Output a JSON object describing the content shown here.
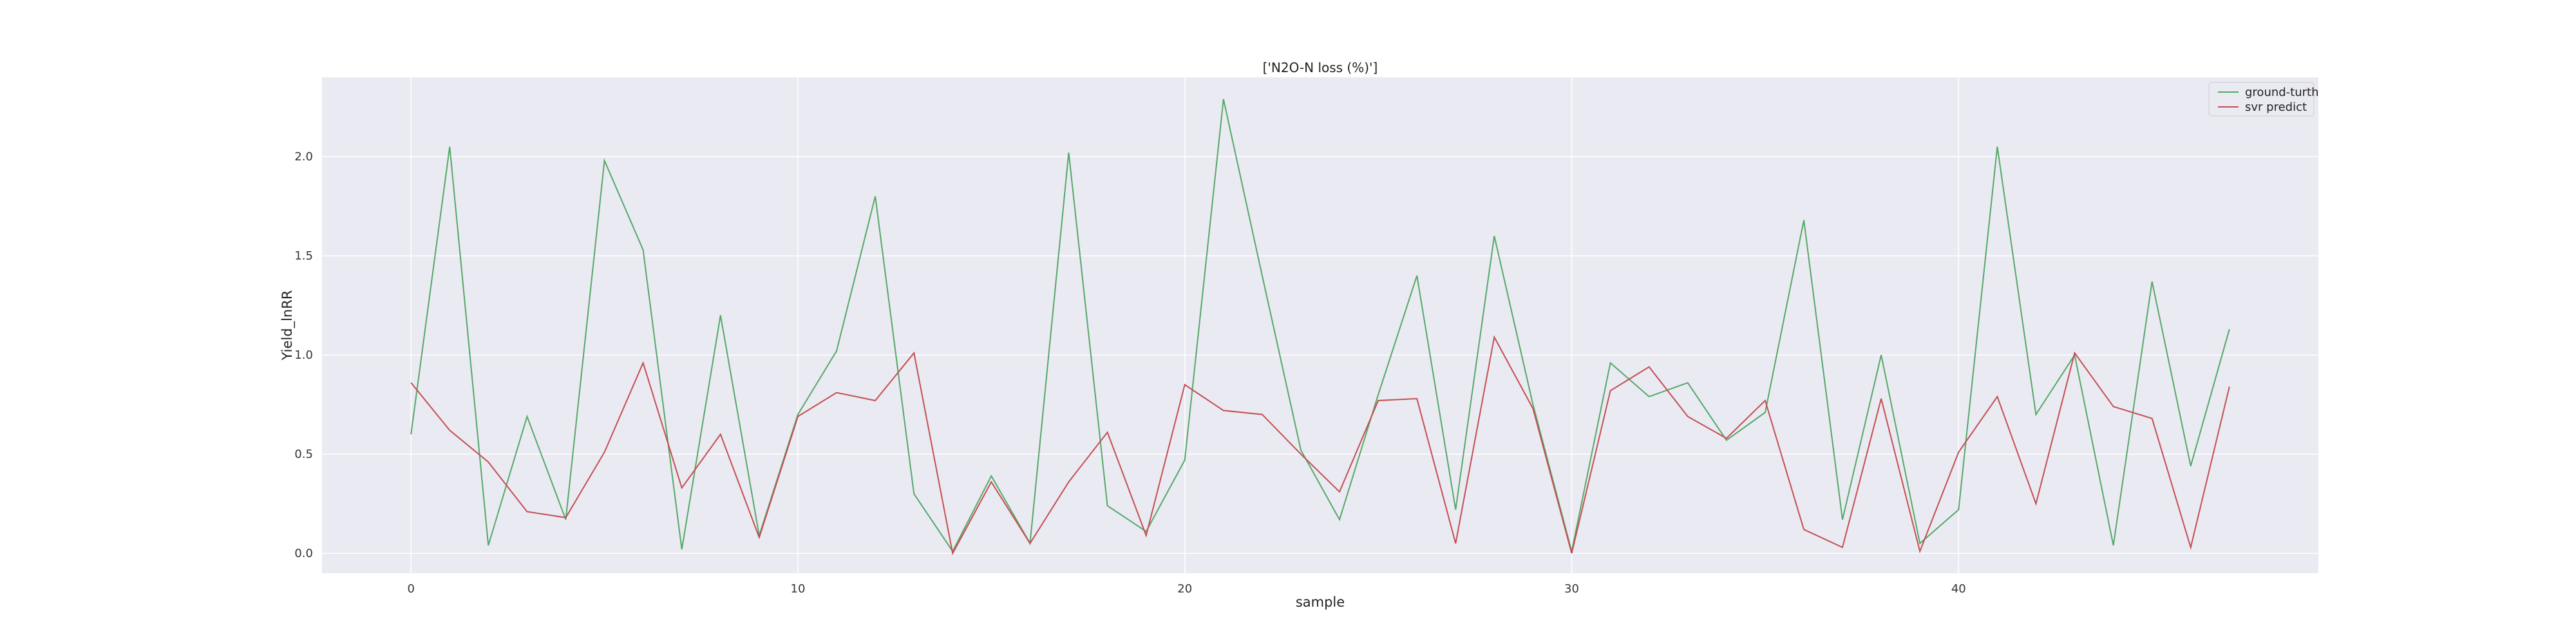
{
  "chart_data": {
    "type": "line",
    "title": "['N2O-N loss (%)']",
    "xlabel": "sample",
    "ylabel": "Yield_lnRR",
    "xlim": [
      -2.3,
      49.3
    ],
    "ylim": [
      -0.1,
      2.4
    ],
    "xticks": [
      0,
      10,
      20,
      30,
      40
    ],
    "yticks": [
      0.0,
      0.5,
      1.0,
      1.5,
      2.0
    ],
    "ytick_labels": [
      "0.0",
      "0.5",
      "1.0",
      "1.5",
      "2.0"
    ],
    "grid": true,
    "legend_position": "top-right",
    "x": [
      0,
      1,
      2,
      3,
      4,
      5,
      6,
      7,
      8,
      9,
      10,
      11,
      12,
      13,
      14,
      15,
      16,
      17,
      18,
      19,
      20,
      21,
      22,
      23,
      24,
      25,
      26,
      27,
      28,
      29,
      30,
      31,
      32,
      33,
      34,
      35,
      36,
      37,
      38,
      39,
      40,
      41,
      42,
      43,
      44,
      45,
      46,
      47
    ],
    "series": [
      {
        "name": "ground-turth",
        "color": "#55a868",
        "values": [
          0.6,
          2.05,
          0.04,
          0.69,
          0.17,
          1.98,
          1.53,
          0.02,
          1.2,
          0.09,
          0.7,
          1.02,
          1.8,
          0.3,
          0.01,
          0.39,
          0.05,
          2.02,
          0.24,
          0.11,
          0.47,
          2.29,
          1.4,
          0.52,
          0.17,
          0.8,
          1.4,
          0.22,
          1.6,
          0.75,
          0.01,
          0.96,
          0.79,
          0.86,
          0.57,
          0.71,
          1.68,
          0.17,
          1.0,
          0.05,
          0.22,
          2.05,
          0.7,
          1.0,
          0.04,
          1.37,
          0.44,
          1.13
        ]
      },
      {
        "name": "svr predict",
        "color": "#c44e52",
        "values": [
          0.86,
          0.62,
          0.46,
          0.21,
          0.18,
          0.51,
          0.96,
          0.33,
          0.6,
          0.08,
          0.69,
          0.81,
          0.77,
          1.01,
          0.0,
          0.36,
          0.05,
          0.36,
          0.61,
          0.09,
          0.85,
          0.72,
          0.7,
          0.5,
          0.31,
          0.77,
          0.78,
          0.05,
          1.09,
          0.73,
          0.0,
          0.82,
          0.94,
          0.69,
          0.58,
          0.77,
          0.12,
          0.03,
          0.78,
          0.01,
          0.51,
          0.79,
          0.25,
          1.01,
          0.74,
          0.68,
          0.03,
          0.84
        ]
      }
    ]
  }
}
